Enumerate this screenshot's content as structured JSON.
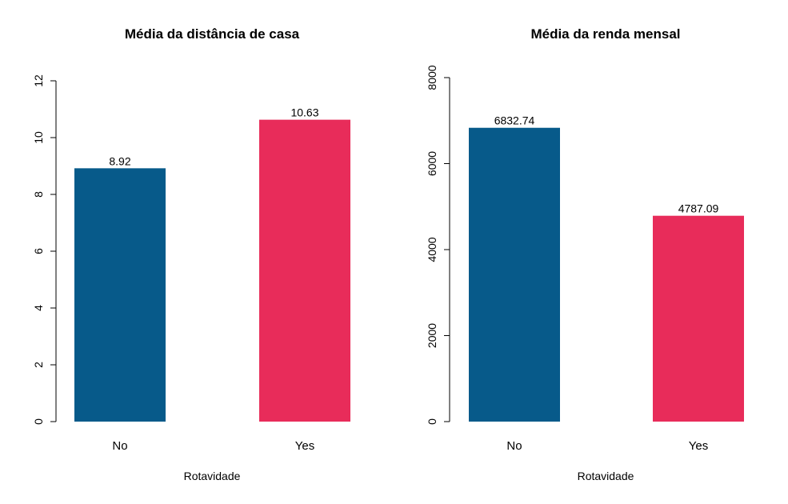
{
  "chart_data": [
    {
      "type": "bar",
      "title": "Média da distância de casa",
      "xlabel": "Rotavidade",
      "ylabel": "",
      "categories": [
        "No",
        "Yes"
      ],
      "values": [
        8.92,
        10.63
      ],
      "data_labels": [
        "8.92",
        "10.63"
      ],
      "colors": [
        "#075a8a",
        "#e82c5a"
      ],
      "ylim": [
        0,
        12
      ],
      "yticks": [
        0,
        2,
        4,
        6,
        8,
        10,
        12
      ],
      "ytick_labels": [
        "0",
        "2",
        "4",
        "6",
        "8",
        "10",
        "12"
      ],
      "grid": false
    },
    {
      "type": "bar",
      "title": "Média da renda mensal",
      "xlabel": "Rotavidade",
      "ylabel": "",
      "categories": [
        "No",
        "Yes"
      ],
      "values": [
        6832.74,
        4787.09
      ],
      "data_labels": [
        "6832.74",
        "4787.09"
      ],
      "colors": [
        "#075a8a",
        "#e82c5a"
      ],
      "ylim": [
        0,
        8000
      ],
      "yticks": [
        0,
        2000,
        4000,
        6000,
        8000
      ],
      "ytick_labels": [
        "0",
        "2000",
        "4000",
        "6000",
        "8000"
      ],
      "grid": false
    }
  ]
}
